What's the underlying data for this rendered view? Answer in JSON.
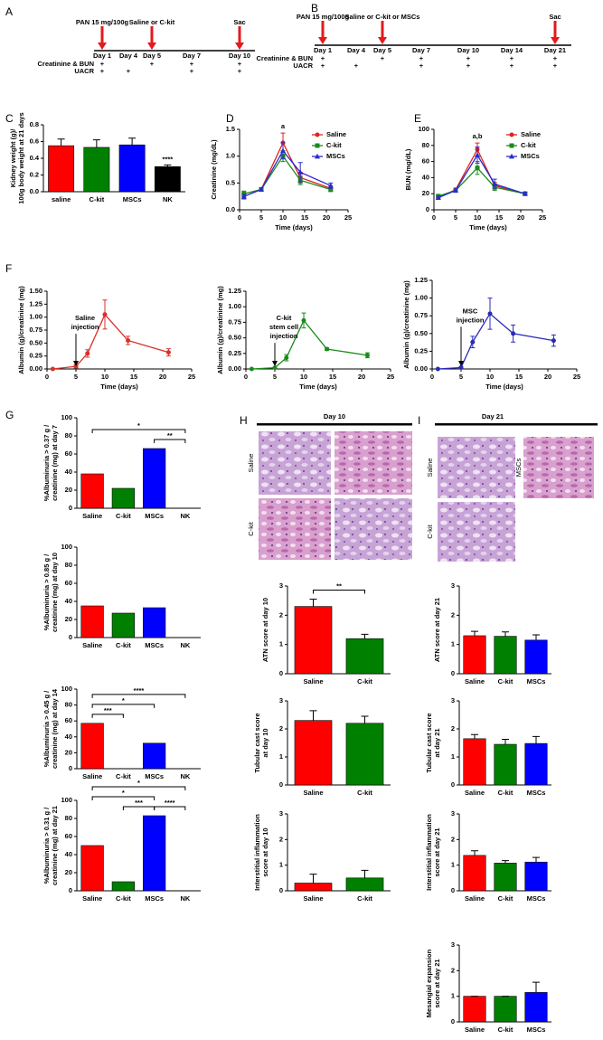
{
  "timelines": [
    {
      "label": "A",
      "days": [
        "Day 1",
        "Day 4",
        "Day 5",
        "Day 7",
        "Day 10"
      ],
      "events": [
        {
          "text": "PAN 15 mg/100g",
          "day": "Day 1"
        },
        {
          "text": "Saline or C-kit",
          "day": "Day 5"
        },
        {
          "text": "Sac",
          "day": "Day 10"
        }
      ],
      "rows": [
        {
          "name": "Creatinine & BUN",
          "marks": [
            "+",
            null,
            "+",
            "+",
            "+"
          ]
        },
        {
          "name": "UACR",
          "marks": [
            "+",
            "+",
            null,
            "+",
            "+"
          ]
        }
      ]
    },
    {
      "label": "B",
      "days": [
        "Day 1",
        "Day 4",
        "Day 5",
        "Day 7",
        "Day 10",
        "Day 14",
        "Day 21"
      ],
      "events": [
        {
          "text": "PAN 15 mg/100g",
          "day": "Day 1"
        },
        {
          "text": "Saline or C-kit or MSCs",
          "day": "Day 5"
        },
        {
          "text": "Sac",
          "day": "Day 21"
        }
      ],
      "rows": [
        {
          "name": "Creatinine & BUN",
          "marks": [
            "+",
            null,
            "+",
            "+",
            "+",
            "+",
            "+"
          ]
        },
        {
          "name": "UACR",
          "marks": [
            "+",
            "+",
            null,
            "+",
            "+",
            "+",
            "+"
          ]
        }
      ]
    }
  ],
  "histology": [
    {
      "label": "H",
      "title": "Day 10",
      "image_labels": [
        "Saline",
        "C-kit"
      ]
    },
    {
      "label": "I",
      "title": "Day 21",
      "image_labels": [
        "Saline",
        "MSCs",
        "C-kit"
      ]
    }
  ],
  "chart_data": [
    {
      "type": "bar",
      "label": "C",
      "ylabel": [
        "Kidney weight (g)/",
        "100g body weight at 21 days"
      ],
      "categories": [
        "saline",
        "C-kit",
        "MSCs",
        "NK"
      ],
      "values": [
        0.55,
        0.53,
        0.56,
        0.3
      ],
      "errors": [
        0.08,
        0.09,
        0.08,
        0.02
      ],
      "colors": [
        "#ff0000",
        "#008000",
        "#0000ff",
        "#000000"
      ],
      "ylim": [
        0,
        0.8
      ],
      "yticks": [
        {
          "value": 0,
          "label": "0.0"
        },
        0.2,
        0.4,
        0.6,
        0.8
      ],
      "annotations": [
        {
          "text": "****",
          "category": "NK"
        }
      ]
    },
    {
      "type": "line",
      "label": "D",
      "xlabel": "Time (days)",
      "ylabel": [
        "Creatinine (mg/dL)"
      ],
      "x": [
        1,
        5,
        10,
        14,
        21
      ],
      "xlim": [
        0,
        25
      ],
      "xticks": [
        0,
        5,
        10,
        15,
        20,
        25
      ],
      "ylim": [
        0,
        1.5
      ],
      "yticks": [
        {
          "value": 0,
          "label": "0.0"
        },
        0.5,
        {
          "value": 1,
          "label": "1.0"
        },
        1.5
      ],
      "legend": true,
      "series": [
        {
          "name": "Saline",
          "color": "#e0221e",
          "marker": "circle",
          "values": [
            0.25,
            0.38,
            1.25,
            0.6,
            0.4
          ],
          "errors": [
            0.05,
            0.03,
            0.18,
            0.1,
            0.05
          ]
        },
        {
          "name": "C-kit",
          "color": "#1a8a1a",
          "marker": "square",
          "values": [
            0.3,
            0.38,
            1.0,
            0.55,
            0.38
          ],
          "errors": [
            0.05,
            0.03,
            0.1,
            0.08,
            0.04
          ]
        },
        {
          "name": "MSCs",
          "color": "#2a2ad0",
          "marker": "triangle",
          "values": [
            0.25,
            0.38,
            1.1,
            0.7,
            0.45
          ],
          "errors": [
            0.04,
            0.03,
            0.15,
            0.18,
            0.05
          ]
        }
      ],
      "annotations": [
        {
          "text": "a",
          "x": 10
        }
      ]
    },
    {
      "type": "line",
      "label": "E",
      "xlabel": "Time (days)",
      "ylabel": [
        "BUN (mg/dL)"
      ],
      "x": [
        1,
        5,
        10,
        14,
        21
      ],
      "xlim": [
        0,
        25
      ],
      "xticks": [
        0,
        5,
        10,
        15,
        20,
        25
      ],
      "ylim": [
        0,
        100
      ],
      "yticks": [
        0,
        20,
        40,
        60,
        80,
        100
      ],
      "legend": true,
      "series": [
        {
          "name": "Saline",
          "color": "#e0221e",
          "marker": "circle",
          "values": [
            15,
            25,
            75,
            30,
            20
          ],
          "errors": [
            2,
            2,
            8,
            4,
            2
          ]
        },
        {
          "name": "C-kit",
          "color": "#1a8a1a",
          "marker": "square",
          "values": [
            17,
            24,
            52,
            28,
            20
          ],
          "errors": [
            2,
            2,
            8,
            4,
            2
          ]
        },
        {
          "name": "MSCs",
          "color": "#2a2ad0",
          "marker": "triangle",
          "values": [
            15,
            24,
            68,
            32,
            20
          ],
          "errors": [
            2,
            2,
            10,
            6,
            2
          ]
        }
      ],
      "annotations": [
        {
          "text": "a,b",
          "x": 10
        }
      ]
    },
    {
      "type": "line",
      "label": "F",
      "xlabel": "Time (days)",
      "ylabel": [
        "Albumin (g)/creatinine (mg)"
      ],
      "x": [
        1,
        5,
        7,
        10,
        14,
        21
      ],
      "xlim": [
        0,
        25
      ],
      "xticks": [
        0,
        5,
        10,
        15,
        20,
        25
      ],
      "ylim": [
        0,
        1.5
      ],
      "yticks": [
        {
          "value": 0,
          "label": "0.00"
        },
        0.25,
        {
          "value": 0.5,
          "label": "0.50"
        },
        0.75,
        {
          "value": 1,
          "label": "1.00"
        },
        1.25,
        {
          "value": 1.5,
          "label": "1.50"
        }
      ],
      "legend": false,
      "series": [
        {
          "color": "#d9302a",
          "marker": "circle",
          "values": [
            0,
            0.05,
            0.3,
            1.05,
            0.55,
            0.32
          ],
          "errors": [
            0,
            0.03,
            0.07,
            0.28,
            0.08,
            0.07
          ]
        }
      ],
      "annotations": [
        {
          "lines": [
            "Saline",
            "injection"
          ],
          "x": 5
        }
      ]
    },
    {
      "type": "line",
      "xlabel": "Time (days)",
      "ylabel": [
        "Albumin (g)/creatinine (mg)"
      ],
      "x": [
        1,
        5,
        7,
        10,
        14,
        21
      ],
      "xlim": [
        0,
        25
      ],
      "xticks": [
        0,
        5,
        10,
        15,
        20,
        25
      ],
      "ylim": [
        0,
        1.25
      ],
      "yticks": [
        {
          "value": 0,
          "label": "0.00"
        },
        0.25,
        {
          "value": 0.5,
          "label": "0.50"
        },
        0.75,
        {
          "value": 1,
          "label": "1.00"
        },
        1.25
      ],
      "legend": false,
      "series": [
        {
          "color": "#1a8a1a",
          "marker": "circle",
          "values": [
            0,
            0.02,
            0.18,
            0.78,
            0.32,
            0.22
          ],
          "errors": [
            0,
            0.01,
            0.05,
            0.12,
            0.02,
            0.04
          ]
        }
      ],
      "annotations": [
        {
          "lines": [
            "C-kit",
            "stem cell",
            "injection"
          ],
          "x": 5
        }
      ]
    },
    {
      "type": "line",
      "xlabel": "Time (days)",
      "ylabel": [
        "Albumin (g)/creatinine (mg)"
      ],
      "x": [
        1,
        5,
        7,
        10,
        14,
        21
      ],
      "xlim": [
        0,
        25
      ],
      "xticks": [
        0,
        5,
        10,
        15,
        20,
        25
      ],
      "ylim": [
        0,
        1.25
      ],
      "yticks": [
        {
          "value": 0,
          "label": "0.00"
        },
        0.25,
        {
          "value": 0.5,
          "label": "0.50"
        },
        0.75,
        {
          "value": 1,
          "label": "1.00"
        },
        1.25
      ],
      "legend": false,
      "series": [
        {
          "color": "#2a2ab8",
          "marker": "circle",
          "values": [
            0,
            0.02,
            0.38,
            0.78,
            0.5,
            0.4
          ],
          "errors": [
            0,
            0.01,
            0.08,
            0.22,
            0.12,
            0.08
          ]
        }
      ],
      "annotations": [
        {
          "lines": [
            "MSC",
            "injection"
          ],
          "x": 5
        }
      ]
    },
    {
      "type": "bar",
      "label": "G",
      "ylabel": [
        "%Albuminuria > 0.37 g /",
        "creatinine (mg) at day 7"
      ],
      "categories": [
        "Saline",
        "C-kit",
        "MSCs",
        "NK"
      ],
      "values": [
        38,
        22,
        66,
        0
      ],
      "colors": [
        "#ff0000",
        "#008000",
        "#0000ff",
        "#000000"
      ],
      "ylim": [
        0,
        100
      ],
      "yticks": [
        0,
        20,
        40,
        60,
        80,
        100
      ],
      "brackets": [
        {
          "text": "*",
          "from": "Saline",
          "to": "NK"
        },
        {
          "text": "**",
          "from": "MSCs",
          "to": "NK"
        }
      ]
    },
    {
      "type": "bar",
      "ylabel": [
        "%Albuminuria > 0.85 g /",
        "creatinine (mg) at day 10"
      ],
      "categories": [
        "Saline",
        "C-kit",
        "MSCs",
        "NK"
      ],
      "values": [
        35,
        27,
        33,
        0
      ],
      "colors": [
        "#ff0000",
        "#008000",
        "#0000ff",
        "#000000"
      ],
      "ylim": [
        0,
        100
      ],
      "yticks": [
        0,
        20,
        40,
        60,
        80,
        100
      ]
    },
    {
      "type": "bar",
      "ylabel": [
        "%Albuminuria > 0.45 g /",
        "creatinine (mg) at day 14"
      ],
      "categories": [
        "Saline",
        "C-kit",
        "MSCs",
        "NK"
      ],
      "values": [
        57,
        0,
        32,
        0
      ],
      "colors": [
        "#ff0000",
        "#008000",
        "#0000ff",
        "#000000"
      ],
      "ylim": [
        0,
        100
      ],
      "yticks": [
        0,
        20,
        40,
        60,
        80,
        100
      ],
      "brackets": [
        {
          "text": "****",
          "from": "Saline",
          "to": "NK"
        },
        {
          "text": "*",
          "from": "Saline",
          "to": "MSCs"
        },
        {
          "text": "***",
          "from": "Saline",
          "to": "C-kit"
        }
      ]
    },
    {
      "type": "bar",
      "ylabel": [
        "%Albuminuria > 0.31 g /",
        "creatinine (mg) at day 21"
      ],
      "categories": [
        "Saline",
        "C-kit",
        "MSCs",
        "NK"
      ],
      "values": [
        50,
        10,
        83,
        0
      ],
      "colors": [
        "#ff0000",
        "#008000",
        "#0000ff",
        "#000000"
      ],
      "ylim": [
        0,
        100
      ],
      "yticks": [
        0,
        20,
        40,
        60,
        80,
        100
      ],
      "brackets": [
        {
          "text": "*",
          "from": "Saline",
          "to": "NK"
        },
        {
          "text": "*",
          "from": "Saline",
          "to": "MSCs"
        },
        {
          "text": "***",
          "from": "C-kit",
          "to": "MSCs"
        },
        {
          "text": "****",
          "from": "MSCs",
          "to": "NK"
        }
      ]
    },
    {
      "type": "bar",
      "ylabel": [
        "ATN score at day 10"
      ],
      "categories": [
        "Saline",
        "C-kit"
      ],
      "values": [
        2.3,
        1.2
      ],
      "errors": [
        0.25,
        0.15
      ],
      "colors": [
        "#ff0000",
        "#008000"
      ],
      "ylim": [
        0,
        3
      ],
      "yticks": [
        0,
        1,
        2,
        3
      ],
      "brackets": [
        {
          "text": "**",
          "from": "Saline",
          "to": "C-kit"
        }
      ]
    },
    {
      "type": "bar",
      "ylabel": [
        "Tubular cast score",
        "at day 10"
      ],
      "categories": [
        "Saline",
        "C-kit"
      ],
      "values": [
        2.3,
        2.2
      ],
      "errors": [
        0.35,
        0.25
      ],
      "colors": [
        "#ff0000",
        "#008000"
      ],
      "ylim": [
        0,
        3
      ],
      "yticks": [
        0,
        1,
        2,
        3
      ]
    },
    {
      "type": "bar",
      "ylabel": [
        "Interstitial inflammation",
        "score at day 10"
      ],
      "categories": [
        "Saline",
        "C-kit"
      ],
      "values": [
        0.3,
        0.5
      ],
      "errors": [
        0.35,
        0.3
      ],
      "colors": [
        "#ff0000",
        "#008000"
      ],
      "ylim": [
        0,
        3
      ],
      "yticks": [
        0,
        1,
        2,
        3
      ]
    },
    {
      "type": "bar",
      "ylabel": [
        "ATN score at day 21"
      ],
      "categories": [
        "Saline",
        "C-kit",
        "MSCs"
      ],
      "values": [
        1.3,
        1.28,
        1.15
      ],
      "errors": [
        0.15,
        0.15,
        0.18
      ],
      "colors": [
        "#ff0000",
        "#008000",
        "#0000ff"
      ],
      "ylim": [
        0,
        3
      ],
      "yticks": [
        0,
        1,
        2,
        3
      ]
    },
    {
      "type": "bar",
      "ylabel": [
        "Tubular cast score",
        "at day 21"
      ],
      "categories": [
        "Saline",
        "C-kit",
        "MSCs"
      ],
      "values": [
        1.65,
        1.45,
        1.48
      ],
      "errors": [
        0.15,
        0.18,
        0.25
      ],
      "colors": [
        "#ff0000",
        "#008000",
        "#0000ff"
      ],
      "ylim": [
        0,
        3
      ],
      "yticks": [
        0,
        1,
        2,
        3
      ]
    },
    {
      "type": "bar",
      "ylabel": [
        "Interstitial inflammation",
        "score at day 21"
      ],
      "categories": [
        "Saline",
        "C-kit",
        "MSCs"
      ],
      "values": [
        1.38,
        1.08,
        1.12
      ],
      "errors": [
        0.18,
        0.1,
        0.18
      ],
      "colors": [
        "#ff0000",
        "#008000",
        "#0000ff"
      ],
      "ylim": [
        0,
        3
      ],
      "yticks": [
        0,
        1,
        2,
        3
      ]
    },
    {
      "type": "bar",
      "ylabel": [
        "Mesangial expansion",
        "score at day 21"
      ],
      "categories": [
        "Saline",
        "C-kit",
        "MSCs"
      ],
      "values": [
        1.0,
        1.0,
        1.15
      ],
      "errors": [
        0,
        0,
        0.4
      ],
      "colors": [
        "#ff0000",
        "#008000",
        "#0000ff"
      ],
      "ylim": [
        0,
        3
      ],
      "yticks": [
        0,
        1,
        2,
        3
      ]
    }
  ]
}
